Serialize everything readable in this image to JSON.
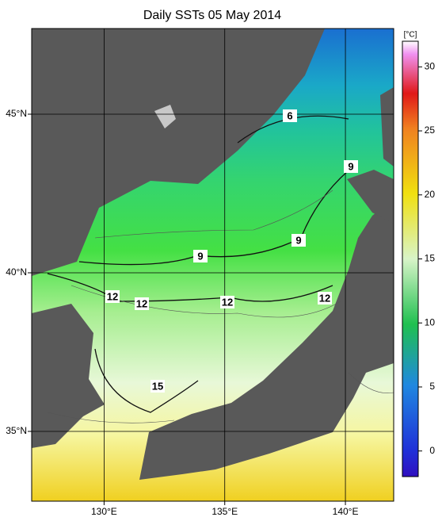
{
  "chart_data": {
    "type": "map",
    "title": "Daily SSTs 05 May 2014",
    "xlim": [
      127,
      142
    ],
    "ylim": [
      32.8,
      47.7
    ],
    "xticks": [
      {
        "value": 130,
        "label": "130°E"
      },
      {
        "value": 135,
        "label": "135°E"
      },
      {
        "value": 140,
        "label": "140°E"
      }
    ],
    "yticks": [
      {
        "value": 35,
        "label": "35°N"
      },
      {
        "value": 40,
        "label": "40°N"
      },
      {
        "value": 45,
        "label": "45°N"
      }
    ],
    "grid": true,
    "colorbar": {
      "label": "[°C]",
      "lim": [
        -2,
        32
      ],
      "ticks": [
        0,
        5,
        10,
        15,
        20,
        25,
        30
      ]
    },
    "contour_labels": [
      6,
      9,
      9,
      9,
      12,
      12,
      12,
      12,
      15
    ]
  }
}
